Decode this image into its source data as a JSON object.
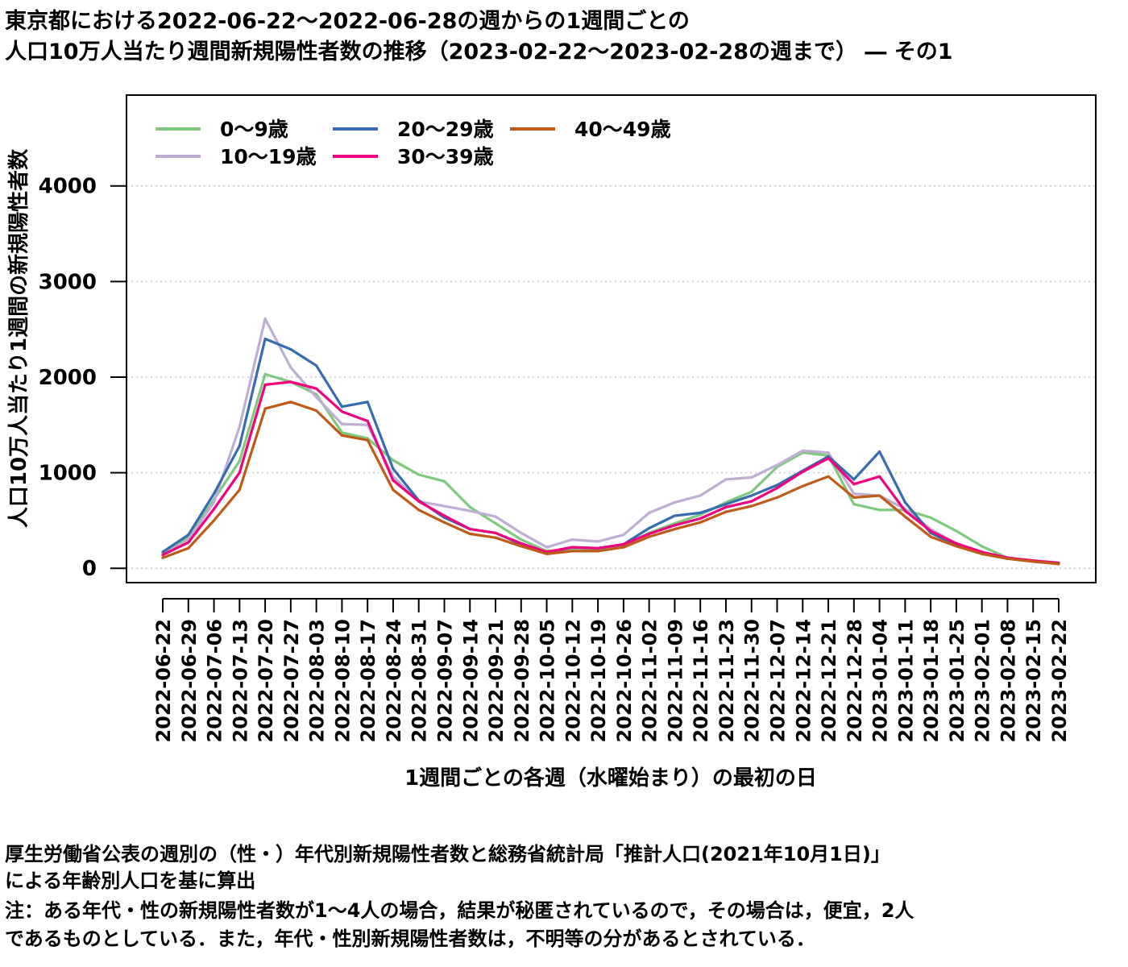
{
  "title": {
    "line1": "東京都における2022-06-22～2022-06-28の週からの1週間ごとの",
    "line2": "人口10万人当たり週間新規陽性者数の推移（2023-02-22～2023-02-28の週まで） ― その1"
  },
  "notes": {
    "line1": "厚生労働省公表の週別の（性・）年代別新規陽性者数と総務省統計局「推計人口(2021年10月1日)」",
    "line2": "による年齢別人口を基に算出",
    "line3": "注：ある年代・性の新規陽性者数が1～4人の場合，結果が秘匿されているので，その場合は，便宜，2人",
    "line4": "であるものとしている．また，年代・性別新規陽性者数は，不明等の分があるとされている．"
  },
  "chart_data": {
    "type": "line",
    "xlabel": "1週間ごとの各週（水曜始まり）の最初の日",
    "ylabel": "人口10万人当たり1週間の新規陽性者数",
    "ylim": [
      -150,
      4950
    ],
    "yticks": [
      0,
      1000,
      2000,
      3000,
      4000
    ],
    "grid": "horizontal dotted",
    "legend_position": "top-left",
    "x": [
      "2022-06-22",
      "2022-06-29",
      "2022-07-06",
      "2022-07-13",
      "2022-07-20",
      "2022-07-27",
      "2022-08-03",
      "2022-08-10",
      "2022-08-17",
      "2022-08-24",
      "2022-08-31",
      "2022-09-07",
      "2022-09-14",
      "2022-09-21",
      "2022-09-28",
      "2022-10-05",
      "2022-10-12",
      "2022-10-19",
      "2022-10-26",
      "2022-11-02",
      "2022-11-09",
      "2022-11-16",
      "2022-11-23",
      "2022-11-30",
      "2022-12-07",
      "2022-12-14",
      "2022-12-21",
      "2022-12-28",
      "2023-01-04",
      "2023-01-11",
      "2023-01-18",
      "2023-01-25",
      "2023-02-01",
      "2023-02-08",
      "2023-02-15",
      "2023-02-22"
    ],
    "series": [
      {
        "name": "0～9歳",
        "color": "#7fc97f",
        "values": [
          150,
          320,
          720,
          1120,
          2030,
          1950,
          1820,
          1420,
          1360,
          1130,
          980,
          910,
          640,
          470,
          300,
          180,
          200,
          200,
          240,
          370,
          470,
          560,
          690,
          800,
          1060,
          1210,
          1180,
          670,
          610,
          610,
          530,
          390,
          230,
          110,
          80,
          60
        ]
      },
      {
        "name": "10～19歳",
        "color": "#beaed4",
        "values": [
          140,
          300,
          690,
          1480,
          2610,
          2100,
          1790,
          1510,
          1500,
          960,
          700,
          650,
          600,
          540,
          370,
          220,
          300,
          280,
          350,
          580,
          690,
          760,
          930,
          950,
          1080,
          1230,
          1210,
          780,
          760,
          620,
          410,
          260,
          170,
          110,
          80,
          60
        ]
      },
      {
        "name": "20～29歳",
        "color": "#386cb0",
        "values": [
          170,
          350,
          780,
          1280,
          2400,
          2290,
          2120,
          1690,
          1740,
          1040,
          710,
          530,
          410,
          370,
          250,
          160,
          220,
          210,
          250,
          420,
          550,
          580,
          670,
          760,
          870,
          1020,
          1170,
          930,
          1220,
          690,
          370,
          240,
          160,
          100,
          75,
          55
        ]
      },
      {
        "name": "30～39歳",
        "color": "#f0027f",
        "values": [
          140,
          270,
          620,
          1000,
          1920,
          1950,
          1880,
          1640,
          1540,
          920,
          700,
          550,
          410,
          370,
          260,
          170,
          220,
          210,
          250,
          360,
          450,
          520,
          640,
          700,
          840,
          1010,
          1150,
          880,
          960,
          600,
          390,
          260,
          170,
          110,
          80,
          55
        ]
      },
      {
        "name": "40～49歳",
        "color": "#bf5b17",
        "values": [
          110,
          210,
          500,
          820,
          1670,
          1740,
          1650,
          1390,
          1340,
          820,
          610,
          480,
          360,
          320,
          230,
          150,
          180,
          180,
          220,
          330,
          410,
          480,
          590,
          650,
          740,
          860,
          960,
          740,
          760,
          540,
          330,
          230,
          150,
          100,
          70,
          45
        ]
      }
    ]
  }
}
